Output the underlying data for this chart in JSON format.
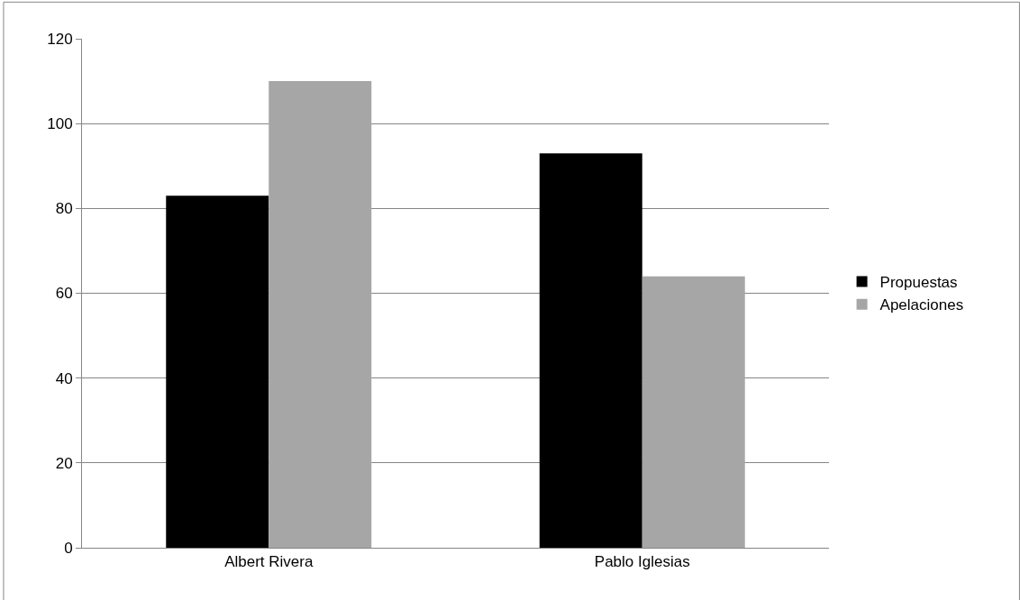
{
  "chart_data": {
    "type": "bar",
    "categories": [
      "Albert Rivera",
      "Pablo Iglesias"
    ],
    "series": [
      {
        "name": "Propuestas",
        "color": "#000000",
        "values": [
          83,
          93
        ]
      },
      {
        "name": "Apelaciones",
        "color": "#a6a6a6",
        "values": [
          110,
          64
        ]
      }
    ],
    "ylim": [
      0,
      120
    ],
    "yticks": [
      0,
      20,
      40,
      60,
      80,
      100,
      120
    ],
    "grid": "y",
    "legend": "right"
  }
}
